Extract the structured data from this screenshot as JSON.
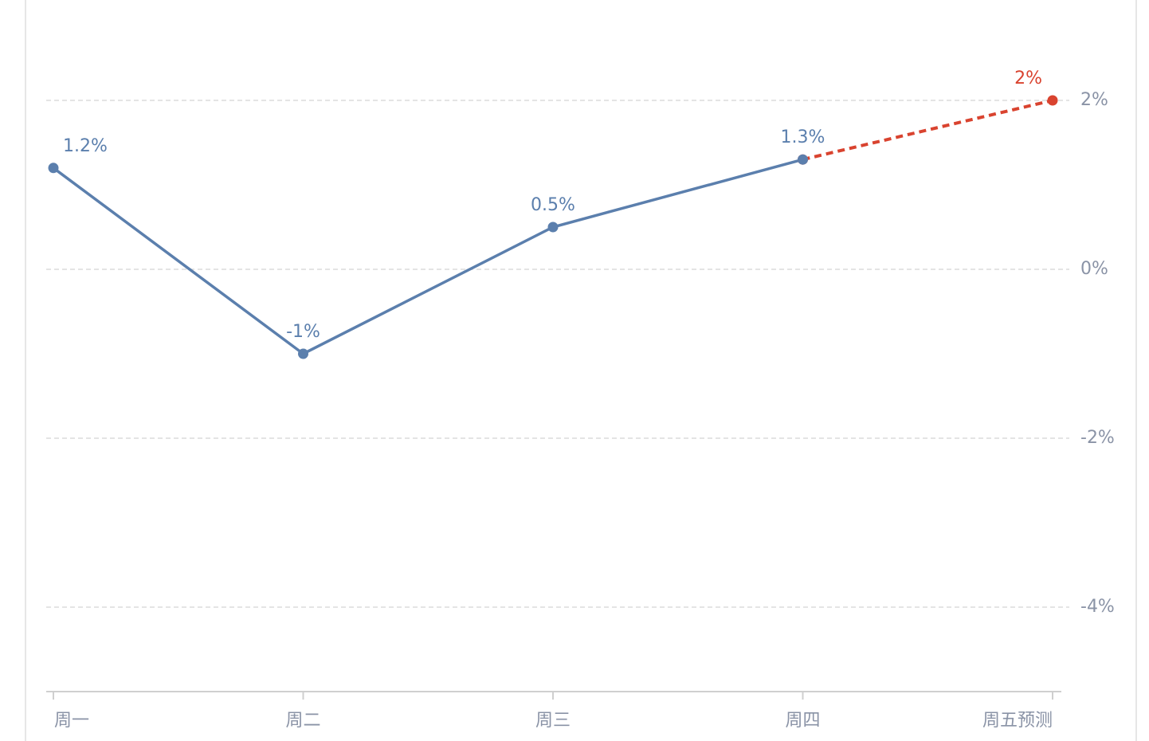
{
  "chart_data": {
    "type": "line",
    "categories": [
      "周一",
      "周二",
      "周三",
      "周四",
      "周五预测"
    ],
    "series": [
      {
        "color": "#5b7fad",
        "dashed": false,
        "values": [
          1.2,
          -1,
          0.5,
          1.3,
          null
        ],
        "value_labels": [
          "1.2%",
          "-1%",
          "0.5%",
          "1.3%",
          null
        ]
      },
      {
        "color": "#d9432f",
        "dashed": true,
        "values": [
          null,
          null,
          null,
          1.3,
          2
        ],
        "value_labels": [
          null,
          null,
          null,
          null,
          "2%"
        ]
      }
    ],
    "ylim": [
      -5,
      3.2
    ],
    "yticks": [
      {
        "value": -4,
        "label": "-4%"
      },
      {
        "value": -2,
        "label": "-2%"
      },
      {
        "value": 0,
        "label": "0%"
      },
      {
        "value": 2,
        "label": "2%"
      }
    ],
    "y_axis_side": "right",
    "grid": true
  }
}
